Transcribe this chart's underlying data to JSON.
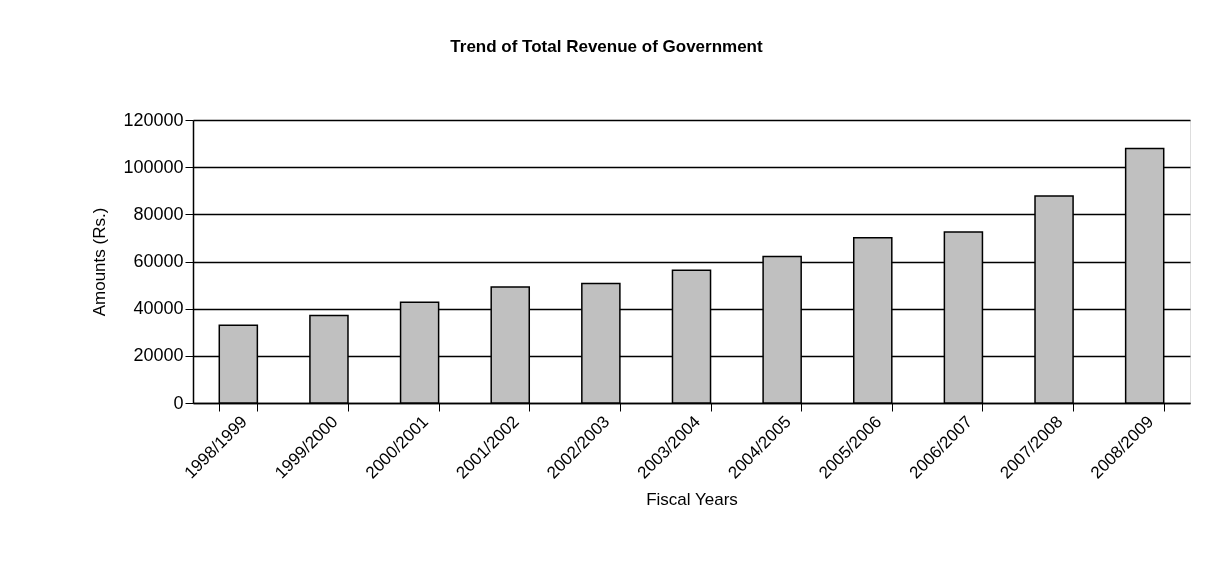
{
  "chart_data": {
    "type": "bar",
    "title": "Trend of Total Revenue of Government",
    "xlabel": "Fiscal Years",
    "ylabel": "Amounts (Rs.)",
    "categories": [
      "1998/1999",
      "1999/2000",
      "2000/2001",
      "2001/2002",
      "2002/2003",
      "2003/2004",
      "2004/2005",
      "2005/2006",
      "2006/2007",
      "2007/2008",
      "2008/2009"
    ],
    "values": [
      33000,
      37100,
      42700,
      49200,
      50700,
      56300,
      62100,
      70100,
      72500,
      87800,
      107900
    ],
    "color": "#c0c0c0",
    "ylim": [
      0,
      120000
    ],
    "yticks": [
      0,
      20000,
      40000,
      60000,
      80000,
      100000,
      120000
    ],
    "grid": "y"
  }
}
